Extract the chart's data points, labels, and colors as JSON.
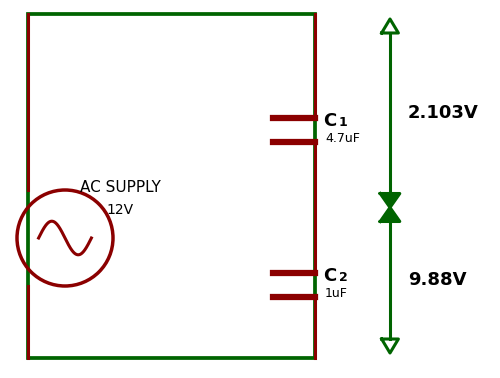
{
  "fig_width": 5.0,
  "fig_height": 3.78,
  "dpi": 100,
  "bg_color": "#ffffff",
  "circuit_color": "#8B0000",
  "green_color": "#006400",
  "ac_supply_text": "AC SUPPLY",
  "ac_supply_voltage": "12V",
  "c1_label": "C",
  "c1_sub": "1",
  "c1_value": "4.7uF",
  "c2_label": "C",
  "c2_sub": "2",
  "c2_value": "1uF",
  "v1_text": "2.103V",
  "v2_text": "9.88V"
}
